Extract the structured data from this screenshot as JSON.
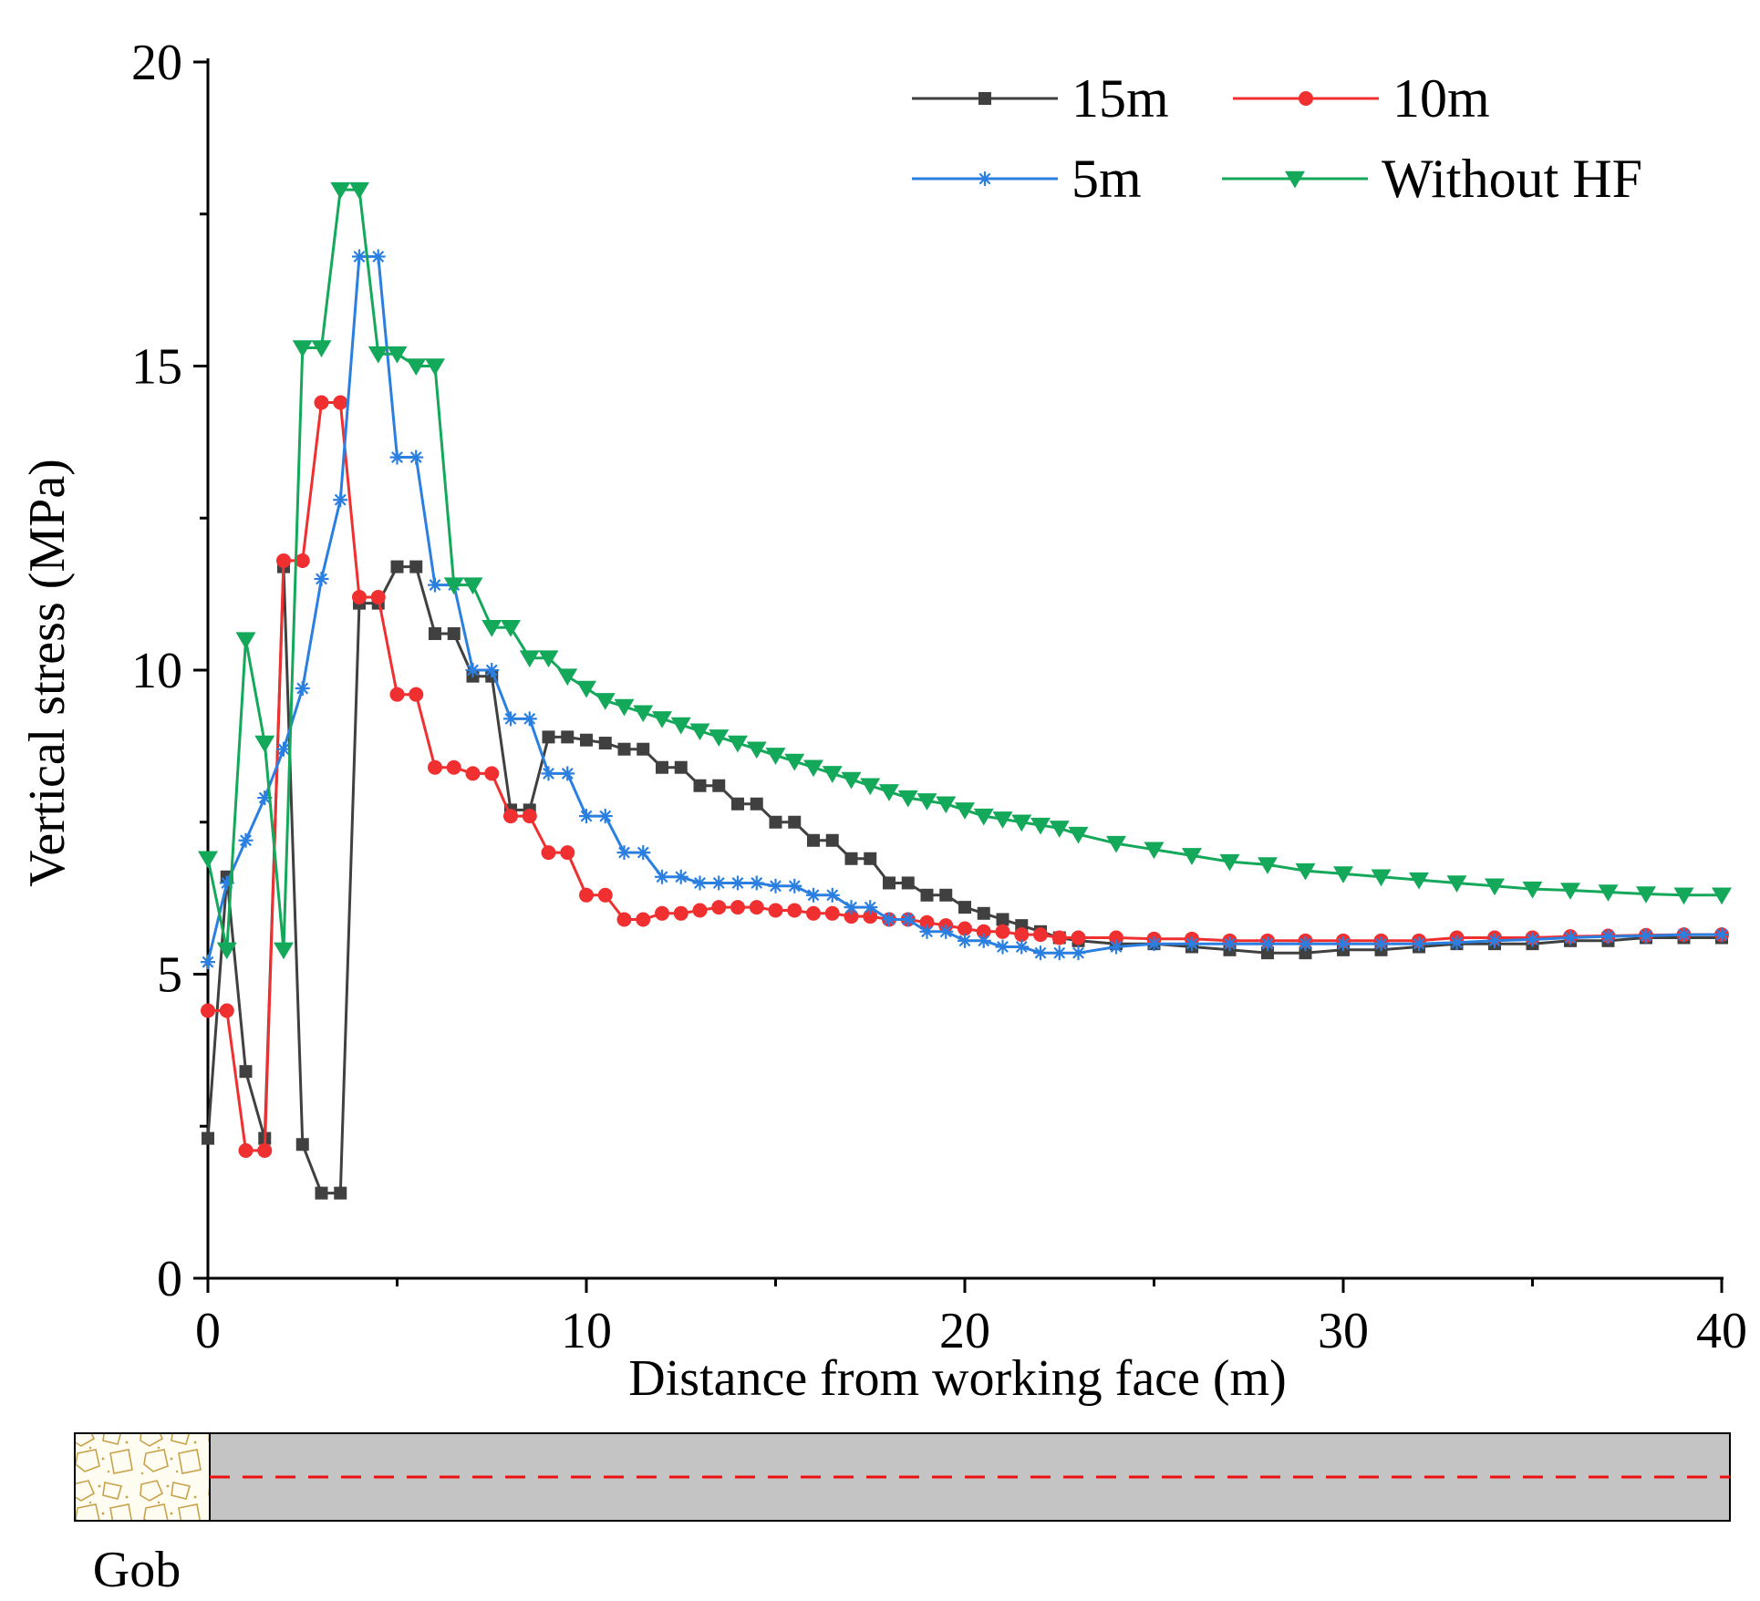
{
  "chart_data": {
    "type": "line",
    "title": "",
    "xlabel": "Distance from working face (m)",
    "ylabel": "Vertical stress (MPa)",
    "xlim": [
      0,
      40
    ],
    "ylim": [
      0,
      20
    ],
    "xticks": [
      "0",
      "10",
      "20",
      "30",
      "40"
    ],
    "yticks": [
      "0",
      "5",
      "10",
      "15",
      "20"
    ],
    "legend_position": "top-right",
    "series": [
      {
        "name": "15m",
        "color": "#404040",
        "marker": "square",
        "x": [
          0,
          0.5,
          1,
          1.5,
          2,
          2.5,
          3,
          3.5,
          4,
          4.5,
          5,
          5.5,
          6,
          6.5,
          7,
          7.5,
          8,
          8.5,
          9,
          9.5,
          10,
          10.5,
          11,
          11.5,
          12,
          12.5,
          13,
          13.5,
          14,
          14.5,
          15,
          15.5,
          16,
          16.5,
          17,
          17.5,
          18,
          18.5,
          19,
          19.5,
          20,
          20.5,
          21,
          21.5,
          22,
          22.5,
          23,
          24,
          25,
          26,
          27,
          28,
          29,
          30,
          31,
          32,
          33,
          34,
          35,
          36,
          37,
          38,
          39,
          40
        ],
        "y": [
          2.3,
          6.6,
          3.4,
          2.3,
          11.7,
          2.2,
          1.4,
          1.4,
          11.1,
          11.1,
          11.7,
          11.7,
          10.6,
          10.6,
          9.9,
          9.9,
          7.7,
          7.7,
          8.9,
          8.9,
          8.85,
          8.8,
          8.7,
          8.7,
          8.4,
          8.4,
          8.1,
          8.1,
          7.8,
          7.8,
          7.5,
          7.5,
          7.2,
          7.2,
          6.9,
          6.9,
          6.5,
          6.5,
          6.3,
          6.3,
          6.1,
          6.0,
          5.9,
          5.8,
          5.7,
          5.6,
          5.55,
          5.5,
          5.5,
          5.45,
          5.4,
          5.35,
          5.35,
          5.4,
          5.4,
          5.45,
          5.5,
          5.5,
          5.5,
          5.55,
          5.55,
          5.6,
          5.6,
          5.6
        ]
      },
      {
        "name": "10m",
        "color": "#f03030",
        "marker": "circle",
        "x": [
          0,
          0.5,
          1,
          1.5,
          2,
          2.5,
          3,
          3.5,
          4,
          4.5,
          5,
          5.5,
          6,
          6.5,
          7,
          7.5,
          8,
          8.5,
          9,
          9.5,
          10,
          10.5,
          11,
          11.5,
          12,
          12.5,
          13,
          13.5,
          14,
          14.5,
          15,
          15.5,
          16,
          16.5,
          17,
          17.5,
          18,
          18.5,
          19,
          19.5,
          20,
          20.5,
          21,
          21.5,
          22,
          22.5,
          23,
          24,
          25,
          26,
          27,
          28,
          29,
          30,
          31,
          32,
          33,
          34,
          35,
          36,
          37,
          38,
          39,
          40
        ],
        "y": [
          4.4,
          4.4,
          2.1,
          2.1,
          11.8,
          11.8,
          14.4,
          14.4,
          11.2,
          11.2,
          9.6,
          9.6,
          8.4,
          8.4,
          8.3,
          8.3,
          7.6,
          7.6,
          7.0,
          7.0,
          6.3,
          6.3,
          5.9,
          5.9,
          6.0,
          6.0,
          6.05,
          6.1,
          6.1,
          6.1,
          6.05,
          6.05,
          6.0,
          6.0,
          5.95,
          5.95,
          5.9,
          5.9,
          5.85,
          5.8,
          5.75,
          5.7,
          5.7,
          5.65,
          5.65,
          5.6,
          5.6,
          5.6,
          5.58,
          5.58,
          5.55,
          5.55,
          5.55,
          5.55,
          5.55,
          5.55,
          5.6,
          5.6,
          5.6,
          5.62,
          5.63,
          5.64,
          5.65,
          5.65
        ]
      },
      {
        "name": "5m",
        "color": "#2a7fe0",
        "marker": "asterisk",
        "x": [
          0,
          0.5,
          1,
          1.5,
          2,
          2.5,
          3,
          3.5,
          4,
          4.5,
          5,
          5.5,
          6,
          6.5,
          7,
          7.5,
          8,
          8.5,
          9,
          9.5,
          10,
          10.5,
          11,
          11.5,
          12,
          12.5,
          13,
          13.5,
          14,
          14.5,
          15,
          15.5,
          16,
          16.5,
          17,
          17.5,
          18,
          18.5,
          19,
          19.5,
          20,
          20.5,
          21,
          21.5,
          22,
          22.5,
          23,
          24,
          25,
          26,
          27,
          28,
          29,
          30,
          31,
          32,
          33,
          34,
          35,
          36,
          37,
          38,
          39,
          40
        ],
        "y": [
          5.2,
          6.5,
          7.2,
          7.9,
          8.7,
          9.7,
          11.5,
          12.8,
          16.8,
          16.8,
          13.5,
          13.5,
          11.4,
          11.4,
          10.0,
          10.0,
          9.2,
          9.2,
          8.3,
          8.3,
          7.6,
          7.6,
          7.0,
          7.0,
          6.6,
          6.6,
          6.5,
          6.5,
          6.5,
          6.5,
          6.45,
          6.45,
          6.3,
          6.3,
          6.1,
          6.1,
          5.9,
          5.9,
          5.7,
          5.7,
          5.55,
          5.55,
          5.45,
          5.45,
          5.35,
          5.35,
          5.35,
          5.45,
          5.5,
          5.5,
          5.5,
          5.5,
          5.5,
          5.5,
          5.5,
          5.5,
          5.52,
          5.55,
          5.57,
          5.6,
          5.62,
          5.63,
          5.65,
          5.65
        ]
      },
      {
        "name": "Without HF",
        "color": "#13a85a",
        "marker": "triangle-down",
        "x": [
          0,
          0.5,
          1,
          1.5,
          2,
          2.5,
          3,
          3.5,
          4,
          4.5,
          5,
          5.5,
          6,
          6.5,
          7,
          7.5,
          8,
          8.5,
          9,
          9.5,
          10,
          10.5,
          11,
          11.5,
          12,
          12.5,
          13,
          13.5,
          14,
          14.5,
          15,
          15.5,
          16,
          16.5,
          17,
          17.5,
          18,
          18.5,
          19,
          19.5,
          20,
          20.5,
          21,
          21.5,
          22,
          22.5,
          23,
          24,
          25,
          26,
          27,
          28,
          29,
          30,
          31,
          32,
          33,
          34,
          35,
          36,
          37,
          38,
          39,
          40
        ],
        "y": [
          6.9,
          5.4,
          10.5,
          8.8,
          5.4,
          15.3,
          15.3,
          17.9,
          17.9,
          15.2,
          15.2,
          15.0,
          15.0,
          11.4,
          11.4,
          10.7,
          10.7,
          10.2,
          10.2,
          9.9,
          9.7,
          9.5,
          9.4,
          9.3,
          9.2,
          9.1,
          9.0,
          8.9,
          8.8,
          8.7,
          8.6,
          8.5,
          8.4,
          8.3,
          8.2,
          8.1,
          8.0,
          7.9,
          7.85,
          7.8,
          7.7,
          7.6,
          7.55,
          7.5,
          7.45,
          7.4,
          7.3,
          7.15,
          7.05,
          6.95,
          6.85,
          6.8,
          6.7,
          6.65,
          6.6,
          6.55,
          6.5,
          6.45,
          6.4,
          6.38,
          6.35,
          6.32,
          6.3,
          6.3
        ]
      }
    ]
  },
  "diagram": {
    "gob_label": "Gob"
  }
}
